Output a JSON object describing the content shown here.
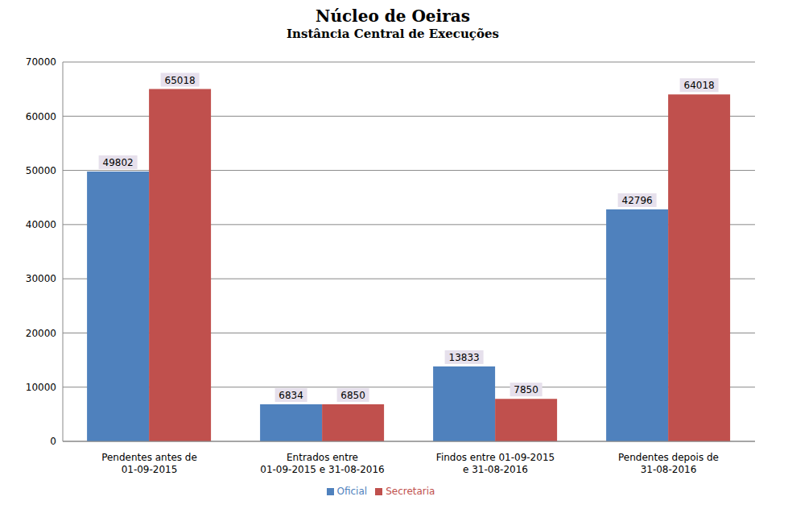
{
  "chart_data": {
    "type": "bar",
    "title": "Núcleo de Oeiras",
    "subtitle": "Instância Central de Execuções",
    "categories": [
      "Pendentes antes de 01-09-2015",
      "Entrados entre 01-09-2015 e 31-08-2016",
      "Findos entre 01-09-2015 e 31-08-2016",
      "Pendentes depois de 31-08-2016"
    ],
    "series": [
      {
        "name": "Oficial",
        "color": "#4f81bd",
        "values": [
          49802,
          6834,
          13833,
          42796
        ]
      },
      {
        "name": "Secretaria",
        "color": "#c0504d",
        "values": [
          65018,
          6850,
          7850,
          64018
        ]
      }
    ],
    "ylim": [
      0,
      70000
    ],
    "yticks": [
      0,
      10000,
      20000,
      30000,
      40000,
      50000,
      60000,
      70000
    ],
    "grid": true,
    "legend": "bottom",
    "data_labels": true
  }
}
